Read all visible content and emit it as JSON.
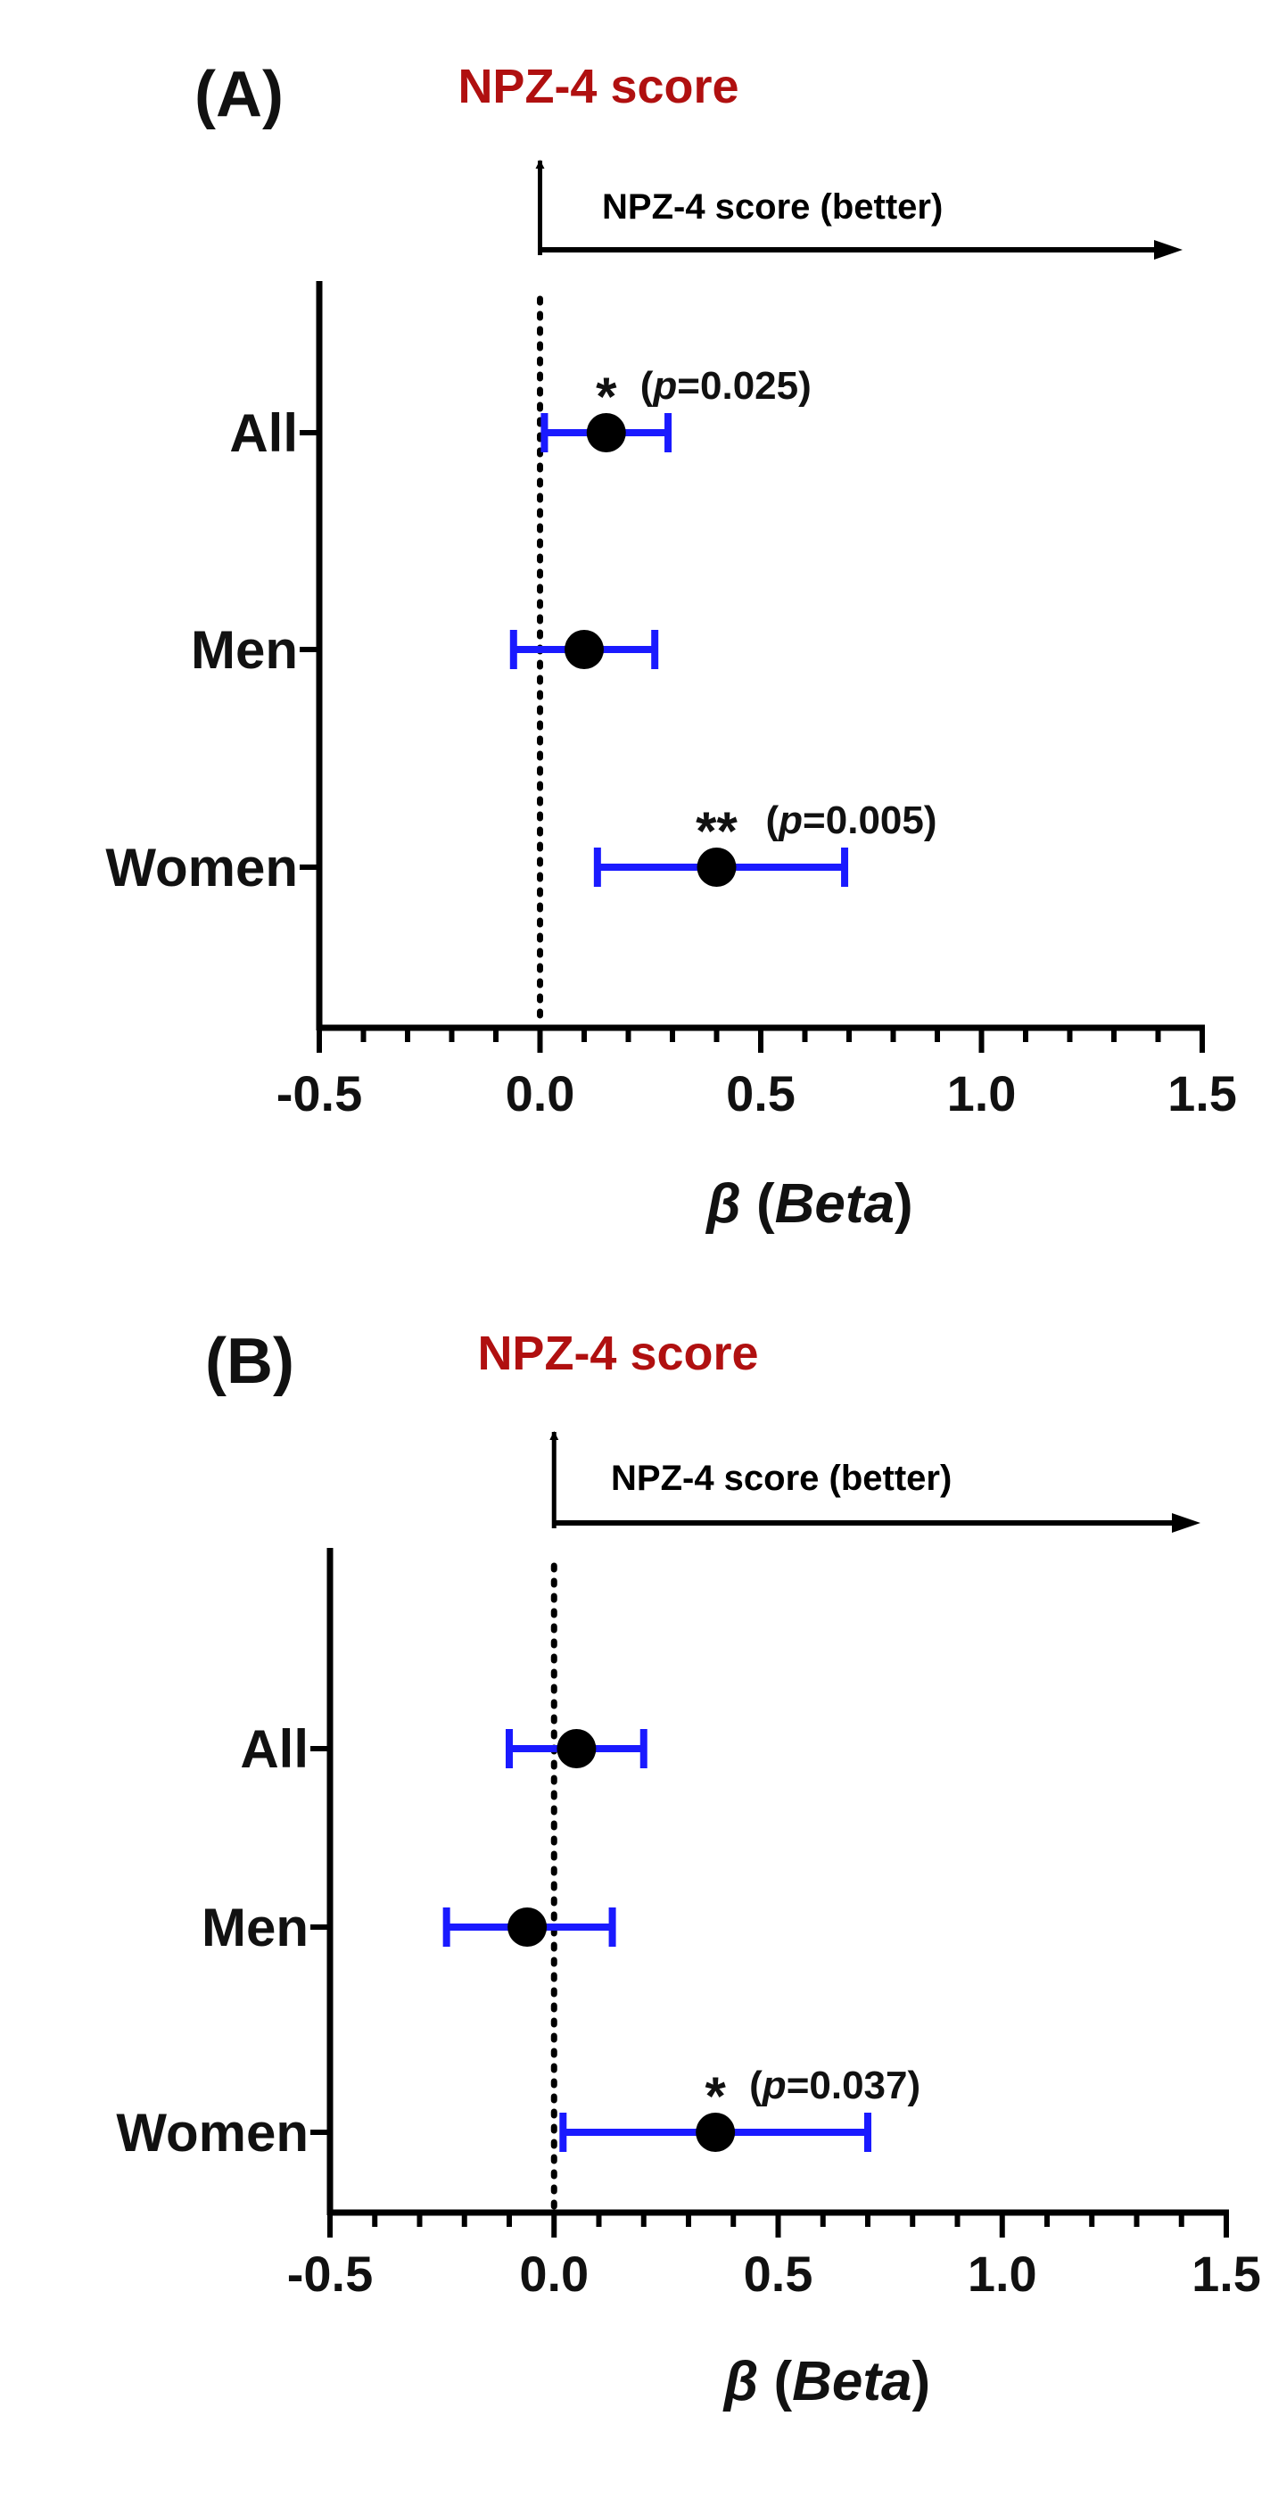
{
  "chart_data": [
    {
      "type": "forest",
      "panel_label": "(A)",
      "title": "NPZ-4 score",
      "title_color": "#b01010",
      "arrow_label": "NPZ-4 score (better)",
      "xlabel_symbol": "β",
      "xlabel_word": "Beta",
      "xlim": [
        -0.5,
        1.5
      ],
      "xticks": [
        -0.5,
        0.0,
        0.5,
        1.0,
        1.5
      ],
      "xtick_labels": [
        "-0.5",
        "0.0",
        "0.5",
        "1.0",
        "1.5"
      ],
      "reference_line": 0.0,
      "categories": [
        "All",
        "Men",
        "Women"
      ],
      "estimates": [
        0.15,
        0.1,
        0.4
      ],
      "ci_low": [
        0.01,
        -0.06,
        0.13
      ],
      "ci_high": [
        0.29,
        0.26,
        0.69
      ],
      "annotations": [
        {
          "category": "All",
          "stars": "*",
          "p_prefix": "(",
          "p_letter": "p",
          "p_rest": "=0.025)"
        },
        {
          "category": "Women",
          "stars": "**",
          "p_prefix": "(",
          "p_letter": "p",
          "p_rest": "=0.005)"
        }
      ],
      "colors": {
        "ci": "#1a1aff",
        "point": "#000000"
      }
    },
    {
      "type": "forest",
      "panel_label": "(B)",
      "title": "NPZ-4 score",
      "title_color": "#b01010",
      "arrow_label": "NPZ-4 score (better)",
      "xlabel_symbol": "β",
      "xlabel_word": "Beta",
      "xlim": [
        -0.5,
        1.5
      ],
      "xticks": [
        -0.5,
        0.0,
        0.5,
        1.0,
        1.5
      ],
      "xtick_labels": [
        "-0.5",
        "0.0",
        "0.5",
        "1.0",
        "1.5"
      ],
      "reference_line": 0.0,
      "categories": [
        "All",
        "Men",
        "Women"
      ],
      "estimates": [
        0.05,
        -0.06,
        0.36
      ],
      "ci_low": [
        -0.1,
        -0.24,
        0.02
      ],
      "ci_high": [
        0.2,
        0.13,
        0.7
      ],
      "annotations": [
        {
          "category": "Women",
          "stars": "*",
          "p_prefix": "(",
          "p_letter": "p",
          "p_rest": "=0.037)"
        }
      ],
      "colors": {
        "ci": "#1a1aff",
        "point": "#000000"
      }
    }
  ]
}
